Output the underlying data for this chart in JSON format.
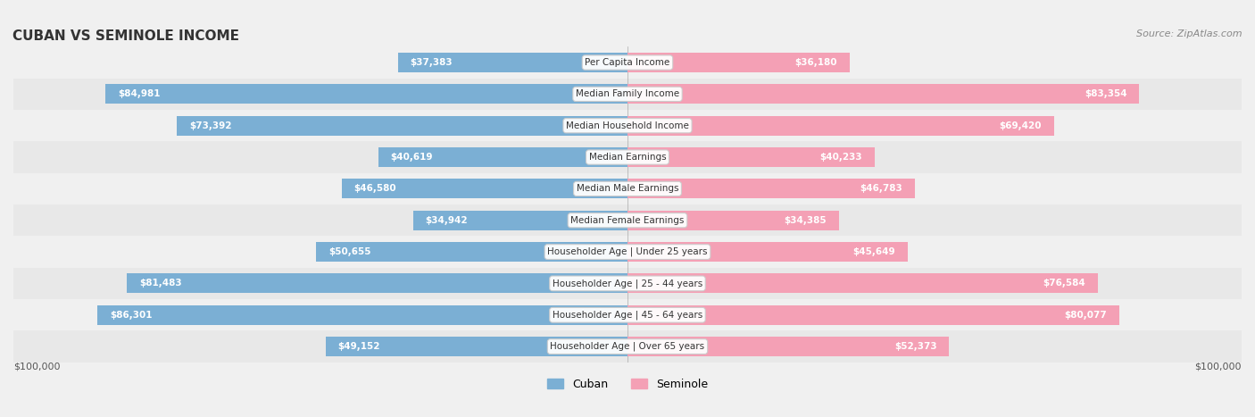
{
  "title": "CUBAN VS SEMINOLE INCOME",
  "source": "Source: ZipAtlas.com",
  "categories": [
    "Per Capita Income",
    "Median Family Income",
    "Median Household Income",
    "Median Earnings",
    "Median Male Earnings",
    "Median Female Earnings",
    "Householder Age | Under 25 years",
    "Householder Age | 25 - 44 years",
    "Householder Age | 45 - 64 years",
    "Householder Age | Over 65 years"
  ],
  "cuban_values": [
    37383,
    84981,
    73392,
    40619,
    46580,
    34942,
    50655,
    81483,
    86301,
    49152
  ],
  "seminole_values": [
    36180,
    83354,
    69420,
    40233,
    46783,
    34385,
    45649,
    76584,
    80077,
    52373
  ],
  "cuban_labels": [
    "$37,383",
    "$84,981",
    "$73,392",
    "$40,619",
    "$46,580",
    "$34,942",
    "$50,655",
    "$81,483",
    "$86,301",
    "$49,152"
  ],
  "seminole_labels": [
    "$36,180",
    "$83,354",
    "$69,420",
    "$40,233",
    "$46,783",
    "$34,385",
    "$45,649",
    "$76,584",
    "$80,077",
    "$52,373"
  ],
  "max_value": 100000,
  "cuban_color": "#7bafd4",
  "seminole_color": "#f4a0b5",
  "cuban_dark_color": "#5b8db8",
  "seminole_dark_color": "#e8728f",
  "bg_color": "#f0f0f0",
  "row_bg": "#f7f7f7",
  "bar_row_bg": "#e8e8e8",
  "legend_cuban": "Cuban",
  "legend_seminole": "Seminole",
  "xlabel_left": "$100,000",
  "xlabel_right": "$100,000"
}
